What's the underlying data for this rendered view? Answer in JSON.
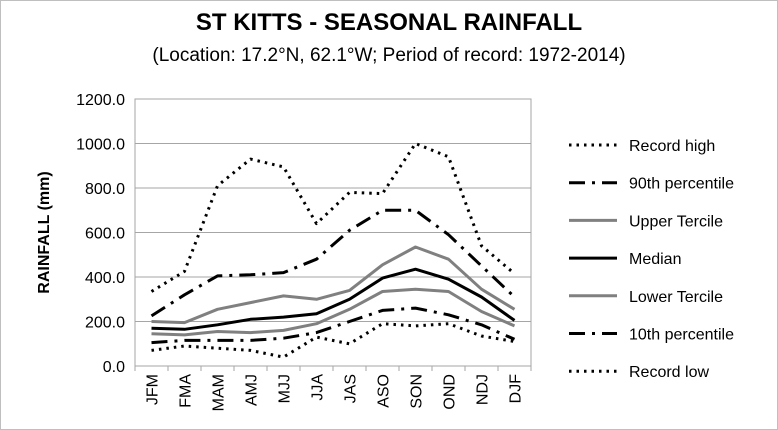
{
  "chart_data": {
    "type": "line",
    "title": "ST KITTS - SEASONAL RAINFALL",
    "subtitle": "(Location: 17.2°N, 62.1°W; Period of record: 1972-2014)",
    "xlabel": "",
    "ylabel": "RAINFALL (mm)",
    "ylim": [
      0,
      1200
    ],
    "yticks": [
      "0.0",
      "200.0",
      "400.0",
      "600.0",
      "800.0",
      "1000.0",
      "1200.0"
    ],
    "ytick_values": [
      0,
      200,
      400,
      600,
      800,
      1000,
      1200
    ],
    "grid": true,
    "legend_position": "right",
    "categories": [
      "JFM",
      "FMA",
      "MAM",
      "AMJ",
      "MJJ",
      "JJA",
      "JAS",
      "ASO",
      "SON",
      "OND",
      "NDJ",
      "DJF"
    ],
    "series": [
      {
        "name": "Record high",
        "style": "dotted",
        "color": "#000000",
        "width": 3,
        "values": [
          335,
          425,
          810,
          930,
          895,
          640,
          780,
          775,
          1000,
          940,
          540,
          415
        ]
      },
      {
        "name": "90th percentile",
        "style": "dashdot",
        "color": "#000000",
        "width": 3,
        "values": [
          225,
          320,
          405,
          410,
          420,
          480,
          610,
          700,
          700,
          590,
          450,
          310
        ]
      },
      {
        "name": "Upper Tercile",
        "style": "solid",
        "color": "#808080",
        "width": 3,
        "values": [
          200,
          195,
          255,
          285,
          315,
          300,
          340,
          455,
          535,
          480,
          345,
          255
        ]
      },
      {
        "name": "Median",
        "style": "solid",
        "color": "#000000",
        "width": 3,
        "values": [
          170,
          165,
          185,
          210,
          220,
          235,
          300,
          395,
          435,
          390,
          310,
          205
        ]
      },
      {
        "name": "Lower Tercile",
        "style": "solid",
        "color": "#808080",
        "width": 3,
        "values": [
          145,
          140,
          155,
          150,
          160,
          190,
          255,
          335,
          345,
          335,
          245,
          180
        ]
      },
      {
        "name": "10th percentile",
        "style": "dashdot",
        "color": "#000000",
        "width": 3,
        "values": [
          105,
          115,
          115,
          115,
          125,
          150,
          200,
          250,
          260,
          230,
          185,
          120
        ]
      },
      {
        "name": "Record low",
        "style": "dotted",
        "color": "#000000",
        "width": 3,
        "values": [
          70,
          90,
          80,
          70,
          40,
          130,
          100,
          190,
          180,
          190,
          135,
          110
        ]
      }
    ]
  }
}
